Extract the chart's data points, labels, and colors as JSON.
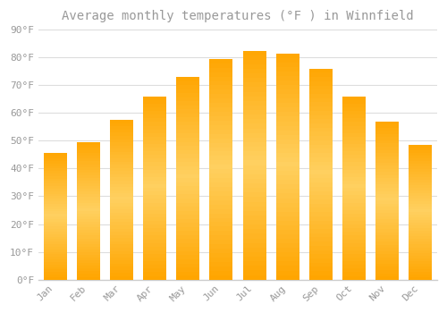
{
  "title": "Average monthly temperatures (°F ) in Winnfield",
  "months": [
    "Jan",
    "Feb",
    "Mar",
    "Apr",
    "May",
    "Jun",
    "Jul",
    "Aug",
    "Sep",
    "Oct",
    "Nov",
    "Dec"
  ],
  "values": [
    45.5,
    49.5,
    57.5,
    66,
    73,
    79.5,
    82.5,
    81.5,
    76,
    66,
    57,
    48.5
  ],
  "bar_color_main": "#FFA500",
  "bar_color_light": "#FFD060",
  "background_color": "#FFFFFF",
  "grid_color": "#DDDDDD",
  "text_color": "#999999",
  "axis_line_color": "#CCCCCC",
  "ylim": [
    0,
    90
  ],
  "yticks": [
    0,
    10,
    20,
    30,
    40,
    50,
    60,
    70,
    80,
    90
  ],
  "ytick_labels": [
    "0°F",
    "10°F",
    "20°F",
    "30°F",
    "40°F",
    "50°F",
    "60°F",
    "70°F",
    "80°F",
    "90°F"
  ],
  "title_fontsize": 10,
  "tick_fontsize": 8,
  "figsize": [
    5.0,
    3.5
  ],
  "dpi": 100
}
